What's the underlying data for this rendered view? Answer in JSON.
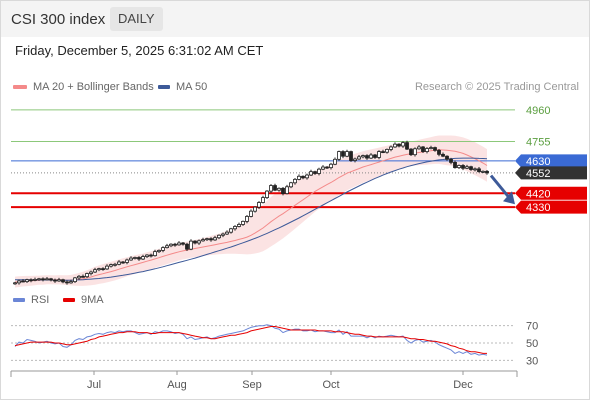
{
  "header": {
    "title": "CSI 300 index",
    "timeframe": "DAILY"
  },
  "datetime": "Friday, December 5, 2025 6:31:02 AM CET",
  "legend": {
    "ma20": "MA 20 + Bollinger Bands",
    "ma50": "MA 50",
    "rsi": "RSI",
    "rsi_ma": "9MA"
  },
  "credit": "Research © 2025 Trading Central",
  "colors": {
    "ma20": "#f48a8a",
    "ma50": "#3d5a99",
    "band": "#fadada",
    "resistance": "#8cc87a",
    "support": "#e60000",
    "pivot": "#3a6ad4",
    "current": "#333333",
    "arrow": "#3d5a99",
    "rsi": "#6b86d6",
    "rsi_ma": "#e60000"
  },
  "chart_data": [
    {
      "type": "candlestick",
      "x_labels": [
        "Jul",
        "Aug",
        "Sep",
        "Oct",
        "Dec"
      ],
      "ylim": [
        3800,
        5050
      ],
      "levels": [
        {
          "value": 4960,
          "label": "4960",
          "kind": "resistance"
        },
        {
          "value": 4755,
          "label": "4755",
          "kind": "resistance"
        },
        {
          "value": 4630,
          "label": "4630",
          "kind": "pivot"
        },
        {
          "value": 4552,
          "label": "4552",
          "kind": "current"
        },
        {
          "value": 4420,
          "label": "4420",
          "kind": "support"
        },
        {
          "value": 4330,
          "label": "4330",
          "kind": "support"
        }
      ],
      "close": [
        3840,
        3852,
        3848,
        3860,
        3856,
        3862,
        3866,
        3861,
        3866,
        3858,
        3852,
        3860,
        3846,
        3840,
        3848,
        3872,
        3882,
        3880,
        3900,
        3910,
        3925,
        3932,
        3930,
        3948,
        3958,
        3960,
        3975,
        3972,
        3988,
        4000,
        4004,
        3994,
        4010,
        4020,
        4016,
        4042,
        4050,
        4068,
        4080,
        4090,
        4086,
        4098,
        4090,
        4058,
        4110,
        4098,
        4112,
        4120,
        4126,
        4118,
        4132,
        4148,
        4156,
        4168,
        4190,
        4205,
        4218,
        4238,
        4270,
        4304,
        4330,
        4360,
        4392,
        4434,
        4470,
        4440,
        4452,
        4418,
        4462,
        4488,
        4510,
        4530,
        4520,
        4538,
        4560,
        4548,
        4576,
        4590,
        4586,
        4608,
        4640,
        4690,
        4660,
        4690,
        4632,
        4642,
        4656,
        4664,
        4648,
        4668,
        4652,
        4690,
        4686,
        4704,
        4720,
        4738,
        4726,
        4748,
        4706,
        4670,
        4708,
        4720,
        4690,
        4710,
        4716,
        4698,
        4672,
        4660,
        4640,
        4620,
        4586,
        4600,
        4582,
        4592,
        4574,
        4578,
        4560,
        4562,
        4552
      ],
      "ma20": [
        3845,
        3848,
        3850,
        3852,
        3853,
        3855,
        3857,
        3858,
        3860,
        3860,
        3859,
        3860,
        3858,
        3857,
        3857,
        3859,
        3862,
        3866,
        3872,
        3878,
        3886,
        3893,
        3899,
        3906,
        3913,
        3920,
        3928,
        3936,
        3944,
        3951,
        3958,
        3965,
        3972,
        3980,
        3987,
        3995,
        4003,
        4011,
        4019,
        4027,
        4034,
        4041,
        4047,
        4052,
        4057,
        4062,
        4067,
        4072,
        4077,
        4082,
        4087,
        4092,
        4097,
        4102,
        4108,
        4114,
        4121,
        4128,
        4136,
        4148,
        4162,
        4178,
        4195,
        4215,
        4236,
        4254,
        4272,
        4288,
        4306,
        4324,
        4342,
        4360,
        4378,
        4396,
        4414,
        4432,
        4447,
        4462,
        4476,
        4490,
        4505,
        4522,
        4536,
        4550,
        4560,
        4570,
        4580,
        4590,
        4598,
        4606,
        4614,
        4622,
        4630,
        4638,
        4646,
        4654,
        4660,
        4666,
        4672,
        4676,
        4680,
        4684,
        4688,
        4692,
        4696,
        4700,
        4702,
        4700,
        4698,
        4696,
        4692,
        4686,
        4678,
        4668,
        4656,
        4644,
        4630,
        4616,
        4600
      ],
      "ma50": [
        3860,
        3860,
        3860,
        3860,
        3859,
        3859,
        3859,
        3858,
        3858,
        3858,
        3857,
        3857,
        3857,
        3857,
        3857,
        3858,
        3859,
        3860,
        3862,
        3864,
        3866,
        3868,
        3871,
        3874,
        3877,
        3881,
        3885,
        3889,
        3893,
        3898,
        3903,
        3908,
        3913,
        3919,
        3925,
        3931,
        3937,
        3944,
        3951,
        3958,
        3965,
        3972,
        3979,
        3986,
        3993,
        4000,
        4008,
        4016,
        4024,
        4032,
        4040,
        4048,
        4056,
        4064,
        4072,
        4081,
        4090,
        4099,
        4108,
        4118,
        4128,
        4138,
        4149,
        4160,
        4172,
        4184,
        4196,
        4208,
        4221,
        4234,
        4247,
        4260,
        4274,
        4288,
        4302,
        4316,
        4330,
        4344,
        4358,
        4372,
        4386,
        4400,
        4414,
        4428,
        4441,
        4454,
        4467,
        4480,
        4492,
        4504,
        4516,
        4527,
        4538,
        4548,
        4558,
        4567,
        4576,
        4584,
        4592,
        4599,
        4606,
        4612,
        4618,
        4623,
        4628,
        4632,
        4636,
        4639,
        4642,
        4644,
        4646,
        4647,
        4648,
        4648,
        4648,
        4647,
        4646,
        4645,
        4643
      ],
      "band_width": [
        35,
        35,
        34,
        33,
        32,
        31,
        30,
        30,
        29,
        29,
        29,
        30,
        31,
        32,
        34,
        38,
        42,
        46,
        50,
        54,
        58,
        60,
        62,
        63,
        64,
        64,
        64,
        63,
        62,
        61,
        60,
        59,
        58,
        58,
        58,
        58,
        58,
        58,
        58,
        58,
        57,
        56,
        55,
        55,
        55,
        56,
        57,
        58,
        60,
        62,
        64,
        67,
        70,
        74,
        80,
        86,
        94,
        102,
        112,
        122,
        132,
        142,
        150,
        156,
        160,
        162,
        162,
        160,
        158,
        155,
        152,
        148,
        144,
        140,
        136,
        132,
        128,
        124,
        120,
        118,
        116,
        114,
        112,
        110,
        108,
        106,
        104,
        102,
        100,
        98,
        96,
        94,
        92,
        90,
        88,
        86,
        84,
        82,
        80,
        80,
        80,
        82,
        84,
        86,
        88,
        90,
        92,
        94,
        96,
        98,
        100,
        102,
        104,
        105,
        106,
        106,
        106,
        106,
        106
      ]
    },
    {
      "type": "line",
      "title": "RSI",
      "y_ticks": [
        70,
        50,
        30
      ],
      "ylim": [
        20,
        80
      ],
      "series": [
        {
          "name": "RSI",
          "values": [
            46,
            51,
            50,
            54,
            53,
            52,
            50,
            51,
            52,
            50,
            49,
            50,
            46,
            45,
            48,
            53,
            55,
            54,
            57,
            58,
            60,
            61,
            60,
            62,
            63,
            62,
            64,
            63,
            64,
            64,
            62,
            60,
            61,
            62,
            60,
            63,
            62,
            64,
            64,
            63,
            61,
            62,
            60,
            55,
            57,
            54,
            55,
            56,
            57,
            55,
            56,
            58,
            59,
            60,
            61,
            62,
            63,
            64,
            66,
            68,
            69,
            70,
            70,
            71,
            70,
            67,
            66,
            62,
            64,
            65,
            66,
            66,
            64,
            64,
            65,
            63,
            64,
            64,
            63,
            62,
            62,
            65,
            60,
            63,
            58,
            58,
            58,
            58,
            56,
            58,
            56,
            58,
            57,
            58,
            59,
            58,
            57,
            58,
            53,
            50,
            53,
            54,
            51,
            52,
            53,
            51,
            48,
            46,
            44,
            42,
            38,
            40,
            38,
            40,
            37,
            38,
            36,
            37,
            36
          ]
        },
        {
          "name": "9MA",
          "values": [
            47,
            48,
            49,
            50,
            51,
            51,
            51,
            51,
            51,
            51,
            50,
            50,
            49,
            48,
            48,
            49,
            50,
            51,
            52,
            54,
            55,
            57,
            58,
            59,
            60,
            61,
            62,
            62,
            63,
            63,
            63,
            62,
            62,
            62,
            61,
            61,
            62,
            62,
            62,
            62,
            62,
            62,
            61,
            60,
            59,
            58,
            57,
            56,
            56,
            55,
            55,
            56,
            57,
            58,
            59,
            59,
            60,
            61,
            62,
            64,
            65,
            66,
            67,
            68,
            69,
            69,
            68,
            67,
            66,
            65,
            65,
            65,
            65,
            65,
            65,
            65,
            64,
            64,
            64,
            64,
            63,
            63,
            63,
            62,
            61,
            60,
            60,
            59,
            58,
            58,
            57,
            57,
            57,
            57,
            57,
            57,
            57,
            57,
            56,
            55,
            55,
            54,
            54,
            53,
            52,
            52,
            51,
            50,
            49,
            47,
            46,
            44,
            43,
            41,
            40,
            40,
            39,
            38,
            38
          ]
        }
      ]
    }
  ]
}
